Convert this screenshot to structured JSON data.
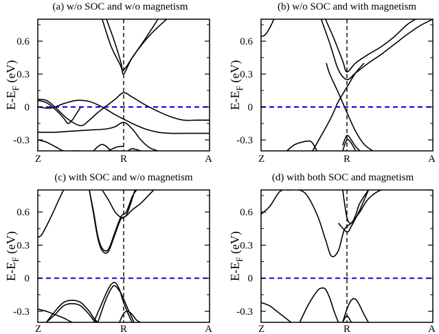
{
  "figure": {
    "ylabel_main": "E-E",
    "ylabel_sub": "F",
    "ylabel_unit": "(eV)"
  },
  "chart_data": [
    {
      "type": "line",
      "title": "(a) w/o SOC and w/o magnetism",
      "xlabel": "",
      "ylabel": "E-EF (eV)",
      "xticks": [
        "Z",
        "R",
        "A"
      ],
      "yticks": [
        0.6,
        0.3,
        0,
        -0.3
      ],
      "ylim": [
        -0.4,
        0.8
      ],
      "xlim": [
        0,
        2
      ],
      "fermi_level": 0,
      "series": [
        {
          "x": [
            0.75,
            0.85,
            0.95,
            1.0,
            1.1,
            1.25,
            1.4
          ],
          "y": [
            0.8,
            0.56,
            0.4,
            0.34,
            0.45,
            0.62,
            0.8
          ]
        },
        {
          "x": [
            0.8,
            0.9,
            0.97,
            1.0,
            1.1,
            1.3,
            1.5
          ],
          "y": [
            0.8,
            0.58,
            0.4,
            0.3,
            0.45,
            0.65,
            0.8
          ]
        },
        {
          "x": [
            0,
            0.1,
            0.2,
            0.35,
            0.5,
            0.6,
            0.7,
            0.8,
            0.9,
            1.0,
            1.1,
            1.25,
            1.4,
            1.55,
            1.7,
            1.85,
            2.0
          ],
          "y": [
            0.07,
            0.06,
            0.0,
            -0.11,
            -0.17,
            -0.12,
            -0.05,
            0.01,
            0.07,
            0.13,
            0.09,
            0.02,
            -0.04,
            -0.09,
            -0.12,
            -0.12,
            -0.12
          ]
        },
        {
          "x": [
            0,
            0.15,
            0.3,
            0.45,
            0.6,
            0.75,
            0.9,
            1.0,
            1.1,
            1.25,
            1.4,
            1.55,
            1.7,
            1.85,
            2.0
          ],
          "y": [
            0.0,
            -0.01,
            0.03,
            0.06,
            0.05,
            0.0,
            -0.07,
            -0.11,
            -0.15,
            -0.2,
            -0.23,
            -0.24,
            -0.24,
            -0.24,
            -0.24
          ]
        },
        {
          "x": [
            0,
            0.1,
            0.2,
            0.3,
            0.35,
            0.4,
            0.45,
            0.5
          ],
          "y": [
            0.06,
            0.04,
            -0.02,
            -0.1,
            -0.15,
            -0.12,
            -0.06,
            0.0
          ]
        },
        {
          "x": [
            0,
            0.2,
            0.4,
            0.6,
            0.8,
            0.9,
            1.0,
            1.1,
            1.2,
            1.3,
            1.4
          ],
          "y": [
            -0.23,
            -0.23,
            -0.22,
            -0.21,
            -0.2,
            -0.18,
            -0.14,
            -0.2,
            -0.3,
            -0.37,
            -0.4
          ]
        },
        {
          "x": [
            0,
            0.1,
            0.2,
            0.3,
            0.4,
            0.5
          ],
          "y": [
            -0.3,
            -0.32,
            -0.36,
            -0.4,
            -0.4,
            -0.4
          ]
        },
        {
          "x": [
            0.65,
            0.7,
            0.75,
            0.8,
            0.85
          ],
          "y": [
            -0.4,
            -0.36,
            -0.34,
            -0.36,
            -0.4
          ]
        },
        {
          "x": [
            0.82,
            0.9,
            0.95,
            1.0
          ],
          "y": [
            -0.4,
            -0.37,
            -0.36,
            -0.36
          ]
        },
        {
          "x": [
            1.05,
            1.1,
            1.2
          ],
          "y": [
            -0.4,
            -0.38,
            -0.4
          ]
        }
      ]
    },
    {
      "type": "line",
      "title": "(b) w/o SOC and with magnetism",
      "xlabel": "",
      "ylabel": "E-EF (eV)",
      "xticks": [
        "Z",
        "R",
        "A"
      ],
      "yticks": [
        0.6,
        0.3,
        0,
        -0.3
      ],
      "ylim": [
        -0.4,
        0.8
      ],
      "xlim": [
        0,
        2
      ],
      "fermi_level": 0,
      "series": [
        {
          "x": [
            0,
            0.05,
            0.1,
            0.15
          ],
          "y": [
            0.64,
            0.66,
            0.72,
            0.8
          ]
        },
        {
          "x": [
            0.75,
            0.85,
            0.95,
            1.0,
            1.1,
            1.25,
            1.4,
            1.55,
            1.7,
            1.8
          ],
          "y": [
            0.8,
            0.62,
            0.42,
            0.32,
            0.4,
            0.48,
            0.55,
            0.64,
            0.75,
            0.8
          ]
        },
        {
          "x": [
            0.7,
            0.8,
            0.9,
            1.0,
            1.1,
            1.25,
            1.4,
            1.55,
            1.7,
            1.85,
            2.0
          ],
          "y": [
            0.8,
            0.58,
            0.34,
            0.25,
            0.31,
            0.4,
            0.48,
            0.57,
            0.66,
            0.74,
            0.8
          ]
        },
        {
          "x": [
            0.6,
            0.8,
            0.9,
            1.0,
            1.1,
            1.2
          ],
          "y": [
            -0.4,
            -0.12,
            0.05,
            0.18,
            0.31,
            0.4
          ]
        },
        {
          "x": [
            0.76,
            0.8,
            0.9,
            1.0,
            1.1,
            1.2,
            1.3
          ],
          "y": [
            0.4,
            0.3,
            0.13,
            -0.05,
            -0.22,
            -0.34,
            -0.4
          ]
        },
        {
          "x": [
            0.3,
            0.4,
            0.55,
            0.6,
            0.65
          ],
          "y": [
            -0.4,
            -0.34,
            -0.31,
            -0.33,
            -0.4
          ]
        },
        {
          "x": [
            0.95,
            1.0,
            1.05,
            1.1
          ],
          "y": [
            -0.4,
            -0.3,
            -0.33,
            -0.4
          ]
        },
        {
          "x": [
            0.95,
            1.0,
            1.05,
            1.1,
            1.15
          ],
          "y": [
            -0.35,
            -0.26,
            -0.3,
            -0.36,
            -0.4
          ]
        }
      ]
    },
    {
      "type": "line",
      "title": "(c) with SOC and w/o magnetism",
      "xlabel": "",
      "ylabel": "E-EF (eV)",
      "xticks": [
        "Z",
        "R",
        "A"
      ],
      "yticks": [
        0.6,
        0.3,
        0,
        -0.3
      ],
      "ylim": [
        -0.4,
        0.8
      ],
      "xlim": [
        0,
        2
      ],
      "fermi_level": 0,
      "series": [
        {
          "x": [
            0,
            0.05,
            0.15,
            0.25,
            0.3
          ],
          "y": [
            0.37,
            0.4,
            0.55,
            0.72,
            0.8
          ]
        },
        {
          "x": [
            0.6,
            0.65,
            0.7,
            0.75,
            0.82,
            0.9,
            0.97,
            1.03,
            1.1,
            1.15
          ],
          "y": [
            0.8,
            0.6,
            0.38,
            0.27,
            0.26,
            0.42,
            0.56,
            0.6,
            0.74,
            0.8
          ]
        },
        {
          "x": [
            0.6,
            0.65,
            0.7,
            0.75,
            0.82,
            0.9,
            0.97,
            1.03,
            1.1,
            1.13
          ],
          "y": [
            0.8,
            0.58,
            0.36,
            0.25,
            0.24,
            0.4,
            0.54,
            0.57,
            0.72,
            0.8
          ]
        },
        {
          "x": [
            0.75,
            0.83,
            0.9,
            0.97,
            1.0,
            1.05,
            1.1,
            1.2,
            1.3,
            1.35
          ],
          "y": [
            0.8,
            0.7,
            0.6,
            0.55,
            0.55,
            0.58,
            0.62,
            0.68,
            0.76,
            0.8
          ]
        },
        {
          "x": [
            0,
            0.1,
            0.2,
            0.3,
            0.4,
            0.45
          ],
          "y": [
            -0.28,
            -0.3,
            -0.33,
            -0.36,
            -0.4,
            -0.4
          ]
        },
        {
          "x": [
            0.1,
            0.2,
            0.3,
            0.4,
            0.5,
            0.6,
            0.65,
            0.7
          ],
          "y": [
            -0.4,
            -0.3,
            -0.22,
            -0.2,
            -0.22,
            -0.3,
            -0.36,
            -0.4
          ]
        },
        {
          "x": [
            0.1,
            0.2,
            0.3,
            0.4,
            0.5,
            0.6,
            0.65,
            0.7
          ],
          "y": [
            -0.4,
            -0.33,
            -0.25,
            -0.23,
            -0.25,
            -0.33,
            -0.38,
            -0.4
          ]
        },
        {
          "x": [
            0.65,
            0.75,
            0.8,
            0.85,
            0.9,
            0.95,
            1.0,
            1.1,
            1.15
          ],
          "y": [
            -0.4,
            -0.22,
            -0.13,
            -0.06,
            -0.04,
            -0.1,
            -0.22,
            -0.4,
            -0.4
          ]
        },
        {
          "x": [
            0.7,
            0.78,
            0.85,
            0.9,
            0.97,
            1.05,
            1.12
          ],
          "y": [
            -0.4,
            -0.22,
            -0.1,
            -0.07,
            -0.14,
            -0.28,
            -0.4
          ]
        },
        {
          "x": [
            0.95,
            1.0,
            1.05,
            1.1,
            1.15,
            1.2
          ],
          "y": [
            -0.4,
            -0.32,
            -0.3,
            -0.33,
            -0.38,
            -0.4
          ]
        }
      ]
    },
    {
      "type": "line",
      "title": "(d) with both SOC and magnetism",
      "xlabel": "",
      "ylabel": "E-EF (eV)",
      "xticks": [
        "Z",
        "R",
        "A"
      ],
      "yticks": [
        0.6,
        0.3,
        0,
        -0.3
      ],
      "ylim": [
        -0.4,
        0.8
      ],
      "xlim": [
        0,
        2
      ],
      "fermi_level": 0,
      "series": [
        {
          "x": [
            0,
            0.1,
            0.2,
            0.25
          ],
          "y": [
            0.58,
            0.65,
            0.77,
            0.8
          ]
        },
        {
          "x": [
            0.3,
            0.5,
            0.65,
            0.75,
            0.82,
            0.9,
            0.97,
            1.05,
            1.15,
            1.25,
            1.4,
            1.6,
            2.0
          ],
          "y": [
            0.8,
            0.78,
            0.58,
            0.35,
            0.2,
            0.25,
            0.44,
            0.5,
            0.6,
            0.72,
            0.8,
            0.81,
            0.8
          ]
        },
        {
          "x": [
            0.95,
            1.0,
            1.05,
            1.1,
            1.15,
            1.25
          ],
          "y": [
            0.8,
            0.55,
            0.5,
            0.57,
            0.68,
            0.8
          ]
        },
        {
          "x": [
            0.9,
            1.0,
            1.05,
            1.15,
            1.25
          ],
          "y": [
            0.5,
            0.42,
            0.47,
            0.62,
            0.8
          ]
        },
        {
          "x": [
            0,
            0.1,
            0.2,
            0.3,
            0.35
          ],
          "y": [
            -0.22,
            -0.25,
            -0.31,
            -0.37,
            -0.4
          ]
        },
        {
          "x": [
            0.45,
            0.55,
            0.65,
            0.7,
            0.75,
            0.8,
            0.85,
            0.9
          ],
          "y": [
            -0.4,
            -0.24,
            -0.12,
            -0.09,
            -0.1,
            -0.18,
            -0.3,
            -0.4
          ]
        },
        {
          "x": [
            0.95,
            1.0,
            1.05,
            1.1,
            1.15,
            1.2,
            1.25
          ],
          "y": [
            -0.4,
            -0.28,
            -0.2,
            -0.19,
            -0.25,
            -0.33,
            -0.4
          ]
        },
        {
          "x": [
            0.95,
            1.0,
            1.05
          ],
          "y": [
            -0.4,
            -0.34,
            -0.4
          ]
        }
      ]
    }
  ]
}
